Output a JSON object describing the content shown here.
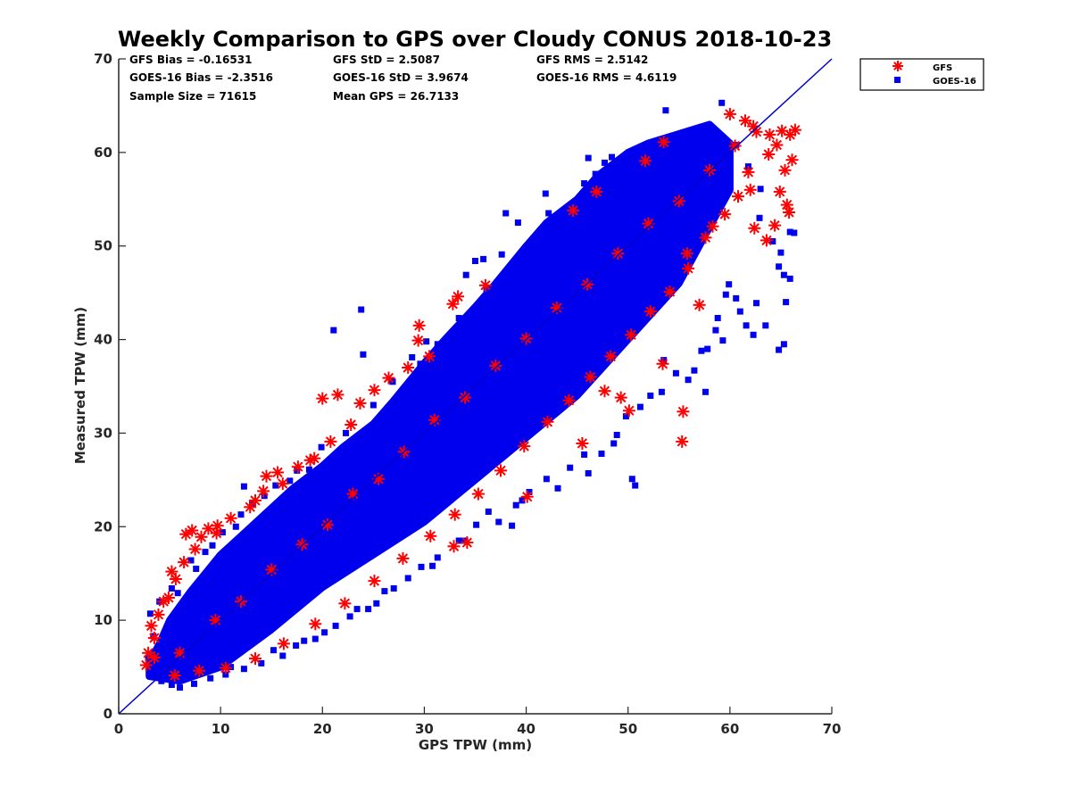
{
  "chart_data": {
    "type": "scatter",
    "title": "Weekly Comparison to GPS over Cloudy CONUS 2018-10-23",
    "xlabel": "GPS TPW (mm)",
    "ylabel": "Measured TPW (mm)",
    "xlim": [
      0,
      70
    ],
    "ylim": [
      0,
      70
    ],
    "xticks": [
      "0",
      "10",
      "20",
      "30",
      "40",
      "50",
      "60",
      "70"
    ],
    "yticks": [
      "0",
      "10",
      "20",
      "30",
      "40",
      "50",
      "60",
      "70"
    ],
    "grid": false,
    "legend_position": "outside top-right",
    "reference_line": {
      "from": [
        0,
        0
      ],
      "to": [
        70,
        70
      ],
      "color": "#0000cc"
    },
    "series": [
      {
        "name": "GFS",
        "marker": "asterisk",
        "color": "#ff0000",
        "points": [
          [
            2.7,
            5.2
          ],
          [
            3.2,
            9.4
          ],
          [
            4.9,
            12.4
          ],
          [
            5.2,
            15.2
          ],
          [
            6.6,
            19.2
          ],
          [
            7.2,
            19.6
          ],
          [
            8.8,
            19.8
          ],
          [
            9.6,
            19.3
          ],
          [
            12.9,
            22.1
          ],
          [
            14.2,
            23.8
          ],
          [
            14.5,
            25.4
          ],
          [
            15.6,
            25.8
          ],
          [
            18.8,
            27.1
          ],
          [
            20.0,
            33.7
          ],
          [
            21.5,
            34.1
          ],
          [
            23.7,
            33.2
          ],
          [
            25.1,
            34.6
          ],
          [
            29.4,
            39.9
          ],
          [
            29.5,
            41.5
          ],
          [
            32.8,
            43.8
          ],
          [
            33.3,
            44.6
          ],
          [
            34.2,
            18.3
          ],
          [
            32.9,
            17.9
          ],
          [
            40.1,
            23.2
          ],
          [
            45.5,
            28.9
          ],
          [
            47.7,
            34.5
          ],
          [
            49.3,
            33.8
          ],
          [
            50.1,
            32.4
          ],
          [
            53.4,
            37.4
          ],
          [
            55.4,
            32.3
          ],
          [
            55.3,
            29.1
          ],
          [
            57.0,
            43.7
          ],
          [
            44.6,
            53.8
          ],
          [
            46.9,
            55.8
          ],
          [
            51.7,
            59.1
          ],
          [
            53.5,
            61.1
          ],
          [
            60.0,
            64.1
          ],
          [
            61.5,
            63.4
          ],
          [
            62.3,
            62.8
          ],
          [
            63.9,
            61.9
          ],
          [
            64.6,
            60.8
          ],
          [
            65.4,
            58.1
          ],
          [
            66.1,
            59.2
          ],
          [
            66.4,
            62.4
          ],
          [
            65.9,
            61.9
          ],
          [
            65.1,
            62.3
          ],
          [
            64.9,
            55.8
          ],
          [
            65.6,
            54.4
          ],
          [
            65.8,
            53.6
          ],
          [
            64.4,
            52.2
          ],
          [
            62.0,
            56.0
          ],
          [
            62.4,
            51.9
          ],
          [
            63.6,
            50.6
          ],
          [
            58.3,
            52.1
          ],
          [
            55.8,
            49.2
          ],
          [
            36.0,
            45.8
          ],
          [
            30.5,
            38.2
          ],
          [
            28.4,
            37.0
          ],
          [
            26.5,
            35.9
          ],
          [
            22.8,
            30.9
          ],
          [
            20.8,
            29.1
          ],
          [
            19.2,
            27.3
          ],
          [
            17.6,
            26.4
          ],
          [
            16.1,
            24.6
          ],
          [
            13.4,
            22.8
          ],
          [
            11.0,
            20.9
          ],
          [
            9.7,
            20.1
          ],
          [
            8.1,
            18.9
          ],
          [
            7.5,
            17.6
          ],
          [
            6.4,
            16.2
          ],
          [
            5.6,
            14.4
          ],
          [
            4.4,
            12.0
          ],
          [
            3.9,
            10.6
          ],
          [
            3.5,
            8.1
          ],
          [
            2.9,
            6.5
          ],
          [
            3.5,
            6.0
          ],
          [
            6.0,
            6.5
          ],
          [
            9.5,
            10.0
          ],
          [
            12.0,
            12.0
          ],
          [
            15.0,
            15.4
          ],
          [
            18.0,
            18.1
          ],
          [
            20.5,
            20.2
          ],
          [
            23.0,
            23.5
          ],
          [
            25.5,
            25.1
          ],
          [
            28.0,
            28.0
          ],
          [
            31.0,
            31.4
          ],
          [
            34.0,
            33.8
          ],
          [
            37.0,
            37.2
          ],
          [
            40.0,
            40.1
          ],
          [
            43.0,
            43.4
          ],
          [
            46.0,
            45.9
          ],
          [
            49.0,
            49.2
          ],
          [
            52.0,
            52.4
          ],
          [
            55.0,
            54.8
          ],
          [
            58.0,
            58.1
          ],
          [
            60.5,
            60.7
          ],
          [
            62.6,
            62.2
          ],
          [
            63.8,
            59.8
          ],
          [
            61.8,
            57.9
          ],
          [
            60.8,
            55.3
          ],
          [
            59.5,
            53.4
          ],
          [
            57.6,
            50.9
          ],
          [
            55.9,
            47.6
          ],
          [
            54.1,
            45.1
          ],
          [
            52.2,
            43.0
          ],
          [
            50.3,
            40.5
          ],
          [
            48.3,
            38.2
          ],
          [
            46.3,
            36.0
          ],
          [
            44.2,
            33.5
          ],
          [
            42.1,
            31.2
          ],
          [
            39.8,
            28.6
          ],
          [
            37.5,
            26.0
          ],
          [
            35.3,
            23.5
          ],
          [
            33.0,
            21.3
          ],
          [
            30.6,
            19.0
          ],
          [
            27.9,
            16.6
          ],
          [
            25.1,
            14.2
          ],
          [
            22.2,
            11.8
          ],
          [
            19.3,
            9.6
          ],
          [
            16.2,
            7.5
          ],
          [
            13.4,
            5.9
          ],
          [
            10.5,
            4.9
          ],
          [
            7.9,
            4.6
          ],
          [
            5.5,
            4.1
          ]
        ]
      },
      {
        "name": "GOES-16",
        "marker": "square",
        "color": "#0000ee",
        "core_band": [
          [
            3,
            4
          ],
          [
            6,
            3.5
          ],
          [
            10,
            5
          ],
          [
            15,
            9
          ],
          [
            20,
            13.5
          ],
          [
            25,
            17
          ],
          [
            30,
            20.5
          ],
          [
            35,
            25
          ],
          [
            40,
            29.5
          ],
          [
            45,
            34
          ],
          [
            50,
            40
          ],
          [
            55,
            46
          ],
          [
            58,
            52
          ],
          [
            60,
            56
          ],
          [
            60,
            61
          ],
          [
            58,
            63
          ],
          [
            55,
            62
          ],
          [
            52,
            61
          ],
          [
            50,
            60
          ],
          [
            47,
            57.5
          ],
          [
            45,
            55
          ],
          [
            42,
            52.5
          ],
          [
            40,
            50
          ],
          [
            37,
            46
          ],
          [
            35,
            43.5
          ],
          [
            32,
            40
          ],
          [
            30,
            37.5
          ],
          [
            27,
            33.5
          ],
          [
            25,
            31
          ],
          [
            22,
            28.5
          ],
          [
            20,
            26.5
          ],
          [
            17,
            24
          ],
          [
            15,
            22
          ],
          [
            12,
            19
          ],
          [
            10,
            17
          ],
          [
            7,
            13
          ],
          [
            5,
            10
          ],
          [
            4,
            7.5
          ],
          [
            3,
            5.5
          ]
        ],
        "points": [
          [
            3.1,
            10.7
          ],
          [
            4.0,
            12.0
          ],
          [
            5.2,
            13.4
          ],
          [
            7.1,
            16.4
          ],
          [
            8.5,
            17.3
          ],
          [
            10.2,
            19.4
          ],
          [
            12.0,
            21.3
          ],
          [
            12.3,
            24.3
          ],
          [
            14.3,
            23.3
          ],
          [
            16.8,
            24.9
          ],
          [
            18.7,
            26.1
          ],
          [
            20.5,
            26.8
          ],
          [
            21.1,
            41.0
          ],
          [
            24.0,
            38.4
          ],
          [
            23.8,
            43.2
          ],
          [
            25.5,
            31.2
          ],
          [
            27.5,
            34.0
          ],
          [
            29.6,
            37.4
          ],
          [
            31.3,
            39.5
          ],
          [
            33.8,
            41.8
          ],
          [
            34.1,
            46.9
          ],
          [
            35.0,
            48.4
          ],
          [
            35.8,
            48.6
          ],
          [
            37.6,
            49.1
          ],
          [
            38.0,
            53.5
          ],
          [
            39.2,
            52.5
          ],
          [
            41.9,
            55.6
          ],
          [
            42.2,
            53.5
          ],
          [
            45.7,
            56.7
          ],
          [
            46.1,
            59.4
          ],
          [
            46.8,
            57.7
          ],
          [
            47.7,
            58.9
          ],
          [
            48.4,
            59.5
          ],
          [
            50.1,
            60.0
          ],
          [
            51.3,
            58.0
          ],
          [
            52.3,
            60.0
          ],
          [
            53.7,
            64.5
          ],
          [
            56.7,
            62.4
          ],
          [
            58.4,
            61.0
          ],
          [
            59.2,
            65.3
          ],
          [
            60.6,
            60.8
          ],
          [
            61.8,
            58.5
          ],
          [
            63.0,
            56.1
          ],
          [
            62.9,
            53.0
          ],
          [
            64.2,
            50.5
          ],
          [
            65.0,
            49.3
          ],
          [
            64.8,
            47.8
          ],
          [
            65.9,
            51.5
          ],
          [
            66.3,
            51.4
          ],
          [
            65.3,
            46.9
          ],
          [
            65.9,
            46.5
          ],
          [
            65.5,
            44.0
          ],
          [
            65.3,
            39.5
          ],
          [
            64.8,
            38.9
          ],
          [
            63.5,
            41.5
          ],
          [
            62.6,
            43.9
          ],
          [
            62.3,
            40.5
          ],
          [
            61.6,
            41.5
          ],
          [
            61.0,
            43.0
          ],
          [
            60.6,
            44.4
          ],
          [
            59.9,
            45.9
          ],
          [
            59.6,
            44.8
          ],
          [
            58.8,
            42.3
          ],
          [
            58.6,
            41.0
          ],
          [
            59.3,
            39.9
          ],
          [
            57.8,
            39.0
          ],
          [
            57.2,
            38.8
          ],
          [
            56.5,
            36.7
          ],
          [
            57.6,
            34.4
          ],
          [
            55.9,
            35.7
          ],
          [
            54.7,
            36.4
          ],
          [
            53.5,
            37.8
          ],
          [
            53.3,
            34.4
          ],
          [
            52.2,
            34.0
          ],
          [
            51.2,
            32.8
          ],
          [
            49.8,
            31.8
          ],
          [
            48.9,
            29.8
          ],
          [
            48.6,
            28.9
          ],
          [
            47.4,
            27.8
          ],
          [
            50.7,
            24.4
          ],
          [
            50.4,
            25.1
          ],
          [
            46.1,
            25.7
          ],
          [
            45.7,
            27.7
          ],
          [
            44.3,
            26.3
          ],
          [
            43.1,
            24.1
          ],
          [
            42.0,
            25.1
          ],
          [
            40.3,
            23.7
          ],
          [
            39.6,
            22.8
          ],
          [
            39.0,
            22.3
          ],
          [
            38.6,
            20.1
          ],
          [
            37.3,
            20.5
          ],
          [
            36.3,
            21.6
          ],
          [
            35.1,
            20.2
          ],
          [
            34.0,
            18.5
          ],
          [
            33.4,
            18.5
          ],
          [
            31.3,
            16.7
          ],
          [
            30.8,
            15.8
          ],
          [
            29.7,
            15.7
          ],
          [
            28.4,
            14.5
          ],
          [
            27.0,
            13.4
          ],
          [
            26.1,
            13.1
          ],
          [
            25.3,
            11.8
          ],
          [
            24.5,
            11.2
          ],
          [
            23.4,
            11.2
          ],
          [
            22.7,
            10.4
          ],
          [
            21.3,
            9.4
          ],
          [
            20.2,
            8.7
          ],
          [
            19.3,
            8.0
          ],
          [
            18.2,
            7.8
          ],
          [
            17.4,
            7.3
          ],
          [
            16.1,
            6.2
          ],
          [
            15.2,
            6.8
          ],
          [
            14.0,
            5.4
          ],
          [
            12.3,
            4.8
          ],
          [
            11.0,
            5.0
          ],
          [
            10.5,
            4.2
          ],
          [
            9.0,
            3.8
          ],
          [
            7.4,
            3.2
          ],
          [
            6.0,
            2.8
          ],
          [
            5.2,
            3.1
          ],
          [
            4.2,
            3.5
          ],
          [
            3.6,
            4.3
          ],
          [
            2.9,
            6.0
          ],
          [
            3.4,
            8.3
          ],
          [
            36.1,
            45.4
          ],
          [
            33.4,
            42.3
          ],
          [
            30.2,
            39.8
          ],
          [
            28.8,
            38.1
          ],
          [
            26.9,
            35.5
          ],
          [
            25.0,
            33.0
          ],
          [
            22.3,
            30.0
          ],
          [
            19.9,
            28.5
          ],
          [
            17.5,
            26.0
          ],
          [
            15.4,
            24.4
          ],
          [
            13.1,
            22.5
          ],
          [
            11.5,
            20.0
          ],
          [
            9.2,
            18.0
          ],
          [
            7.6,
            15.5
          ],
          [
            5.8,
            12.9
          ]
        ]
      }
    ],
    "stats": {
      "gfs_bias": "GFS Bias = -0.16531",
      "goes_bias": "GOES-16 Bias = -2.3516",
      "sample_size": "Sample Size = 71615",
      "gfs_std": "GFS StD = 2.5087",
      "goes_std": "GOES-16 StD = 3.9674",
      "mean_gps": "Mean GPS = 26.7133",
      "gfs_rms": "GFS RMS = 2.5142",
      "goes_rms": "GOES-16 RMS = 4.6119"
    }
  }
}
